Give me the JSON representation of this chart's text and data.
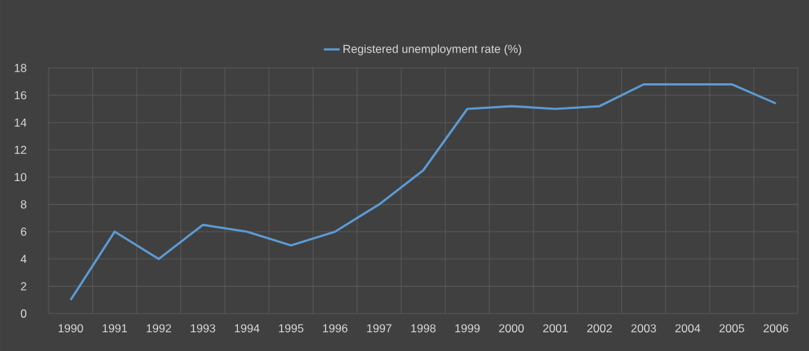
{
  "chart_data": {
    "type": "line",
    "categories": [
      "1990",
      "1991",
      "1992",
      "1993",
      "1994",
      "1995",
      "1996",
      "1997",
      "1998",
      "1999",
      "2000",
      "2001",
      "2002",
      "2003",
      "2004",
      "2005",
      "2006"
    ],
    "series": [
      {
        "name": "Registered unemployment rate (%)",
        "color": "#5b9bd5",
        "values": [
          1,
          6,
          4,
          6.5,
          6,
          5,
          6,
          8,
          10.5,
          15,
          15.2,
          15,
          15.2,
          16.8,
          16.8,
          16.8,
          15.4
        ]
      }
    ],
    "ylim": [
      0,
      18
    ],
    "yticks": [
      0,
      2,
      4,
      6,
      8,
      10,
      12,
      14,
      16,
      18
    ],
    "grid": true,
    "legend": "top",
    "marker": "none",
    "line_style": "solid"
  }
}
